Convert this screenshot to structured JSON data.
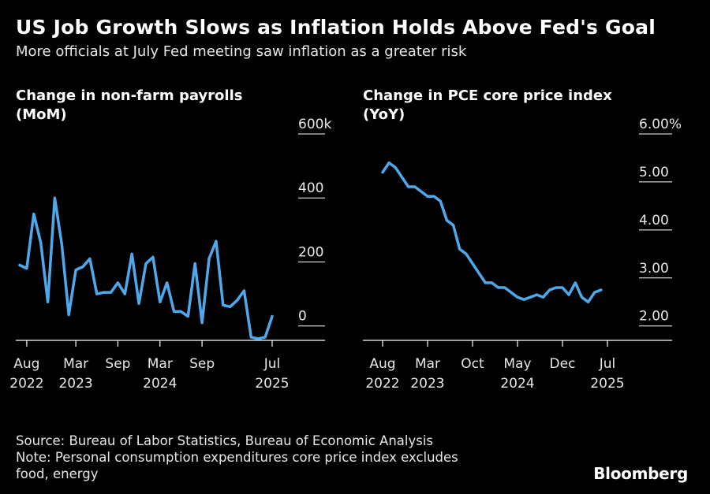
{
  "header": {
    "title": "US Job Growth Slows as Inflation Holds Above Fed's Goal",
    "subtitle": "More officials at July Fed meeting saw inflation as a greater risk"
  },
  "footer": {
    "source": "Source: Bureau of Labor Statistics, Bureau of Economic Analysis",
    "note_line1": "Note: Personal consumption expenditures core price index excludes",
    "note_line2": "food, energy",
    "brand": "Bloomberg"
  },
  "colors": {
    "line": "#4da9ec",
    "background": "#000000",
    "text": "#ffffff",
    "grid": "#ffffff"
  },
  "chart_data": [
    {
      "type": "line",
      "title_line1": "Change in non-farm payrolls",
      "title_line2": "(MoM)",
      "ylim": [
        -45,
        600
      ],
      "yticks": [
        {
          "value": 600,
          "label": "600k"
        },
        {
          "value": 400,
          "label": "400"
        },
        {
          "value": 200,
          "label": "200"
        },
        {
          "value": 0,
          "label": "0"
        }
      ],
      "xticks": [
        {
          "x": "2022-08",
          "line1": "Aug",
          "line2": "2022"
        },
        {
          "x": "2023-03",
          "line1": "Mar",
          "line2": "2023"
        },
        {
          "x": "2023-09",
          "line1": "Sep",
          "line2": ""
        },
        {
          "x": "2024-03",
          "line1": "Mar",
          "line2": "2024"
        },
        {
          "x": "2024-09",
          "line1": "Sep",
          "line2": ""
        },
        {
          "x": "2025-07",
          "line1": "Jul",
          "line2": "2025"
        }
      ],
      "series": [
        {
          "x": [
            "2022-07",
            "2022-08",
            "2022-09",
            "2022-10",
            "2022-11",
            "2022-12",
            "2023-01",
            "2023-02",
            "2023-03",
            "2023-04",
            "2023-05",
            "2023-06",
            "2023-07",
            "2023-08",
            "2023-09",
            "2023-10",
            "2023-11",
            "2023-12",
            "2024-01",
            "2024-02",
            "2024-03",
            "2024-04",
            "2024-05",
            "2024-06",
            "2024-07",
            "2024-08",
            "2024-09",
            "2024-10",
            "2024-11",
            "2024-12",
            "2025-01",
            "2025-02",
            "2025-03",
            "2025-04",
            "2025-05",
            "2025-06",
            "2025-07"
          ],
          "values": [
            190,
            180,
            350,
            260,
            75,
            400,
            255,
            35,
            175,
            185,
            210,
            100,
            105,
            105,
            135,
            100,
            225,
            70,
            195,
            215,
            75,
            135,
            45,
            45,
            30,
            195,
            10,
            210,
            265,
            65,
            60,
            80,
            110,
            -35,
            -40,
            -35,
            30
          ]
        }
      ]
    },
    {
      "type": "line",
      "title_line1": "Change in PCE core price index",
      "title_line2": "(YoY)",
      "ylim": [
        1.7,
        6.0
      ],
      "yticks": [
        {
          "value": 6.0,
          "label": "6.00%"
        },
        {
          "value": 5.0,
          "label": "5.00"
        },
        {
          "value": 4.0,
          "label": "4.00"
        },
        {
          "value": 3.0,
          "label": "3.00"
        },
        {
          "value": 2.0,
          "label": "2.00"
        }
      ],
      "xticks": [
        {
          "x": "2022-08",
          "line1": "Aug",
          "line2": "2022"
        },
        {
          "x": "2023-03",
          "line1": "Mar",
          "line2": "2023"
        },
        {
          "x": "2023-10",
          "line1": "Oct",
          "line2": ""
        },
        {
          "x": "2024-05",
          "line1": "May",
          "line2": "2024"
        },
        {
          "x": "2024-12",
          "line1": "Dec",
          "line2": ""
        },
        {
          "x": "2025-07",
          "line1": "Jul",
          "line2": "2025"
        }
      ],
      "series": [
        {
          "x": [
            "2022-08",
            "2022-09",
            "2022-10",
            "2022-11",
            "2022-12",
            "2023-01",
            "2023-02",
            "2023-03",
            "2023-04",
            "2023-05",
            "2023-06",
            "2023-07",
            "2023-08",
            "2023-09",
            "2023-10",
            "2023-11",
            "2023-12",
            "2024-01",
            "2024-02",
            "2024-03",
            "2024-04",
            "2024-05",
            "2024-06",
            "2024-07",
            "2024-08",
            "2024-09",
            "2024-10",
            "2024-11",
            "2024-12",
            "2025-01",
            "2025-02",
            "2025-03",
            "2025-04",
            "2025-05",
            "2025-06"
          ],
          "values": [
            5.2,
            5.4,
            5.3,
            5.1,
            4.9,
            4.9,
            4.8,
            4.7,
            4.7,
            4.6,
            4.2,
            4.1,
            3.6,
            3.5,
            3.3,
            3.1,
            2.9,
            2.9,
            2.8,
            2.8,
            2.7,
            2.6,
            2.55,
            2.6,
            2.65,
            2.6,
            2.75,
            2.8,
            2.8,
            2.65,
            2.9,
            2.6,
            2.5,
            2.7,
            2.75
          ]
        }
      ]
    }
  ]
}
